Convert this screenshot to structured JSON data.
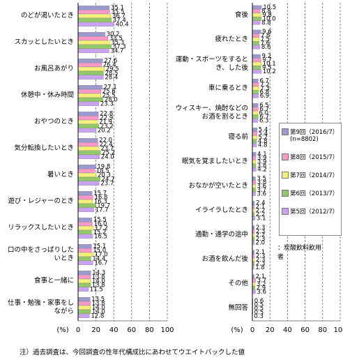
{
  "chart_data": [
    {
      "type": "bar",
      "orientation": "horizontal",
      "x_label": "(%)",
      "xlim": [
        0,
        100
      ],
      "xticks": [
        0,
        20,
        40,
        60,
        80,
        100
      ],
      "grid": true,
      "categories": [
        "のどが渇いたとき",
        "スカッとしたいとき",
        "お風呂あがり",
        "休憩中・休み時間",
        "おやつのとき",
        "気分転換したいとき",
        "暑いとき",
        "遊び・レジャーのとき",
        "リラックスしたいとき",
        "口の中をさっぱりしたいとき",
        "食事と一緒に",
        "仕事・勉強・家事をしながら"
      ],
      "series": [
        {
          "color": "#9b9bd0",
          "values": [
            35.1,
            30.2,
            27.6,
            27.1,
            22.8,
            22,
            19.8,
            15.7,
            15.5,
            15.1,
            14.3,
            13.5
          ],
          "value_labels": [
            "35.1",
            "30.2",
            "27.6",
            "27.1",
            "22.8",
            "22.0",
            "19.8",
            "15.7",
            "15.5",
            "15.1",
            "14.3",
            "13.5"
          ]
        },
        {
          "color": "#f79ac8",
          "values": [
            35.5,
            33.5,
            26.4,
            25.6,
            22.9,
            22.4,
            18.5,
            16.8,
            16,
            15,
            13.8,
            13.8
          ],
          "value_labels": [
            "35.5",
            "33.5",
            "26.4",
            "25.6",
            "22.9",
            "22.4",
            "18.5",
            "16.8",
            "16.0",
            "15.0",
            "13.8",
            "13.8"
          ]
        },
        {
          "color": "#f4f07a",
          "values": [
            36.7,
            35.3,
            29.5,
            25.5,
            21.9,
            23.7,
            20.3,
            16.3,
            17.2,
            17,
            14,
            14
          ],
          "value_labels": [
            "36.7",
            "35.3",
            "29.5",
            "25.5",
            "21.9",
            "23.7",
            "20.3",
            "16.3",
            "17.2",
            "17.0",
            "14.0",
            "14.0"
          ]
        },
        {
          "color": "#93c86a",
          "values": [
            37.4,
            37.3,
            28.5,
            28,
            23.2,
            25.2,
            24.7,
            19.7,
            15.2,
            14.4,
            13.8,
            14
          ],
          "value_labels": [
            "37.4",
            "37.3",
            "28.5",
            "28.0",
            "23.2",
            "25.2",
            "24.7",
            "19.7",
            "15.2",
            "14.4",
            "13.8",
            "14.0"
          ]
        },
        {
          "color": "#c9a3ef",
          "values": [
            40.4,
            34.7,
            28.4,
            23.3,
            20.2,
            24,
            23.7,
            17.7,
            16.5,
            16.7,
            11.5,
            12.8
          ],
          "value_labels": [
            "40.4",
            "34.7",
            "28.4",
            "23.3",
            "20.2",
            "24.0",
            "23.7",
            "17.7",
            "16.5",
            "16.7",
            "11.5",
            "12.8"
          ]
        }
      ]
    },
    {
      "type": "bar",
      "orientation": "horizontal",
      "x_label": "(%)",
      "xlim": [
        0,
        100
      ],
      "xticks": [
        0,
        20,
        40,
        60,
        80,
        100
      ],
      "grid": true,
      "categories": [
        "食後",
        "疲れたとき",
        "運動・スポーツをするとき、した後",
        "車に乗るとき",
        "ウィスキー、焼酎などのお酒を割るとき",
        "寝る前",
        "眠気を覚ましたいとき",
        "おなかが空いたとき",
        "イライラしたとき",
        "通勤・通学の途中",
        "お酒を飲んだ後",
        "その他",
        "無回答"
      ],
      "series": [
        {
          "name": "第9回（2016/7）",
          "color": "#9b9bd0",
          "values": [
            10.5,
            9.6,
            9.2,
            6.7,
            6.5,
            5.4,
            4.1,
            3.5,
            2.4,
            2.3,
            2.1,
            2.1,
            0.6
          ],
          "value_labels": [
            "10.5",
            "9.6",
            "9.2",
            "6.7",
            "6.5",
            "5.4",
            "4.1",
            "3.5",
            "2.4",
            "2.3",
            "2.1",
            "2.1",
            "0.6"
          ]
        },
        {
          "name": "第8回（2015/7）",
          "color": "#f79ac8",
          "values": [
            8.8,
            7.8,
            9.7,
            7.2,
            6.7,
            5.4,
            3.9,
            3.8,
            2.1,
            2.3,
            2.3,
            3.7,
            0.5
          ],
          "value_labels": [
            "8.8",
            "7.8",
            "9.7",
            "7.2",
            "6.7",
            "5.4",
            "3.9",
            "3.8",
            "2.1",
            "2.3",
            "2.3",
            "3.7",
            "0.5"
          ]
        },
        {
          "name": "第7回（2014/7）",
          "color": "#f4f07a",
          "values": [
            9.8,
            7.5,
            10.1,
            7.3,
            6,
            5.2,
            3.9,
            3.6,
            2.2,
            2.2,
            2.3,
            3.2,
            0.5
          ],
          "value_labels": [
            "9.8",
            "7.5",
            "10.1",
            "7.3",
            "6.0",
            "5.2",
            "3.9",
            "3.6",
            "2.2",
            "2.2",
            "2.3",
            "3.2",
            "0.5"
          ]
        },
        {
          "name": "第6回（2013/7）",
          "color": "#93c86a",
          "values": [
            10,
            7.6,
            9.5,
            6.8,
            6.7,
            4.8,
            3.8,
            3.7,
            2.2,
            2.3,
            2.3,
            2.9,
            0.5
          ],
          "value_labels": [
            "10.0",
            "7.6",
            "9.5",
            "6.8",
            "6.7",
            "4.8",
            "3.8",
            "3.7",
            "2.2",
            "2.3",
            "2.3",
            "2.9",
            "0.5"
          ]
        },
        {
          "name": "第5回（2012/7）",
          "color": "#c9a3ef",
          "values": [
            8.8,
            8.6,
            10.2,
            6.9,
            6.3,
            4.8,
            4.2,
            3.6,
            3.1,
            2,
            1.8,
            3.6,
            0.3
          ],
          "value_labels": [
            "8.8",
            "8.6",
            "10.2",
            "6.9",
            "6.3",
            "4.8",
            "4.2",
            "3.6",
            "3.1",
            "2.0",
            "1.8",
            "3.6",
            "0.3"
          ]
        }
      ],
      "legend_note": "(n=8802)",
      "respondent_note": "：炭酸飲料飲用者"
    }
  ],
  "footnote": "注）過去調査は、今回調査の性年代構成比にあわせてウエイトバックした値"
}
